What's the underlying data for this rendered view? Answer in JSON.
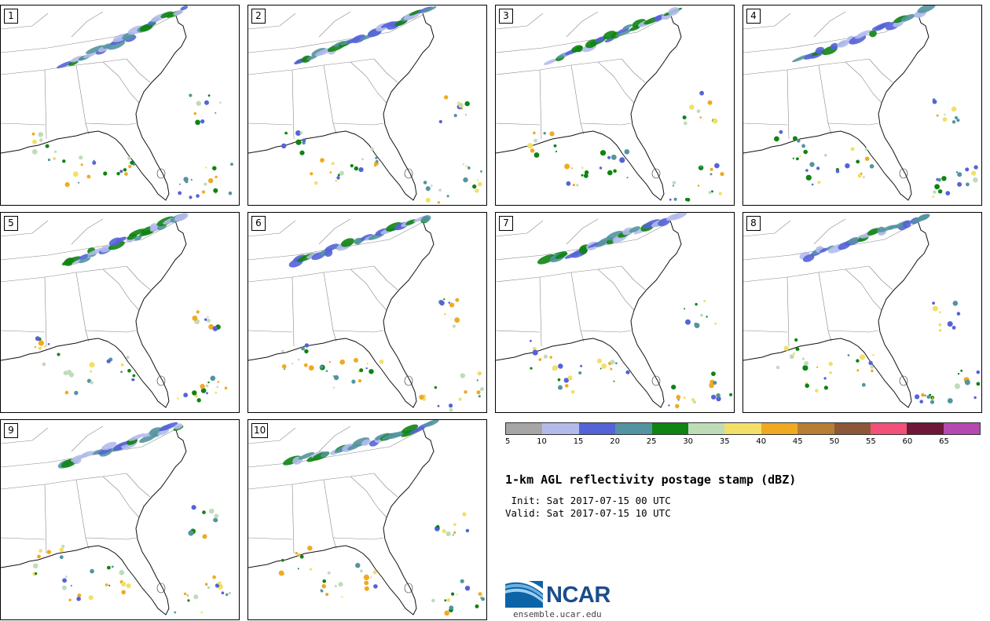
{
  "panels": [
    {
      "label": "1"
    },
    {
      "label": "2"
    },
    {
      "label": "3"
    },
    {
      "label": "4"
    },
    {
      "label": "5"
    },
    {
      "label": "6"
    },
    {
      "label": "7"
    },
    {
      "label": "8"
    },
    {
      "label": "9"
    },
    {
      "label": "10"
    }
  ],
  "colorbar": {
    "colors": [
      "#a6a6a6",
      "#b3bbeb",
      "#5563d8",
      "#5394a0",
      "#0e8412",
      "#bfdcb9",
      "#f2e068",
      "#efaa22",
      "#b77e35",
      "#8d5838",
      "#f2517a",
      "#6e1739",
      "#b44ab0"
    ],
    "ticks": [
      "5",
      "10",
      "15",
      "20",
      "25",
      "30",
      "35",
      "40",
      "45",
      "50",
      "55",
      "60",
      "65"
    ]
  },
  "title": "1-km AGL reflectivity postage stamp (dBZ)",
  "init_line": " Init: Sat 2017-07-15 00 UTC",
  "valid_line": "Valid: Sat 2017-07-15 10 UTC",
  "logo": {
    "text": "NCAR",
    "url": "ensemble.ucar.edu"
  }
}
